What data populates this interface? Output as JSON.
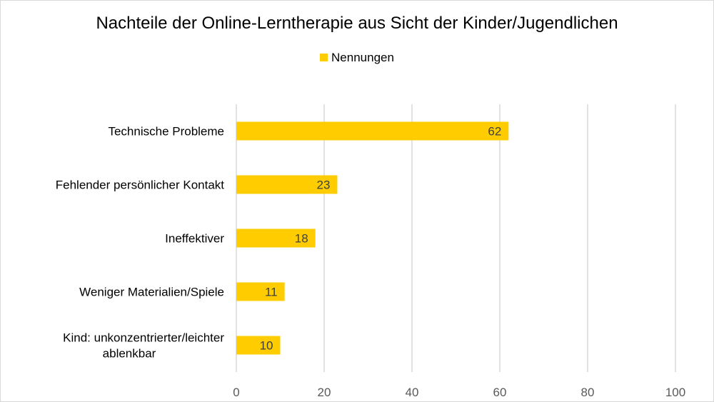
{
  "chart_data": {
    "type": "bar",
    "orientation": "horizontal",
    "title": "Nachteile der Online-Lerntherapie aus Sicht der Kinder/Jugendlichen",
    "categories": [
      "Technische Probleme",
      "Fehlender persönlicher Kontakt",
      "Ineffektiver",
      "Weniger Materialien/Spiele",
      "Kind: unkonzentrierter/leichter ablenkbar"
    ],
    "series": [
      {
        "name": "Nennungen",
        "values": [
          62,
          23,
          18,
          11,
          10
        ],
        "color": "#FFCC00"
      }
    ],
    "xlim": [
      0,
      100
    ],
    "xticks": [
      0,
      20,
      40,
      60,
      80,
      100
    ],
    "grid": "vertical",
    "legend_position": "top",
    "data_labels": true
  }
}
